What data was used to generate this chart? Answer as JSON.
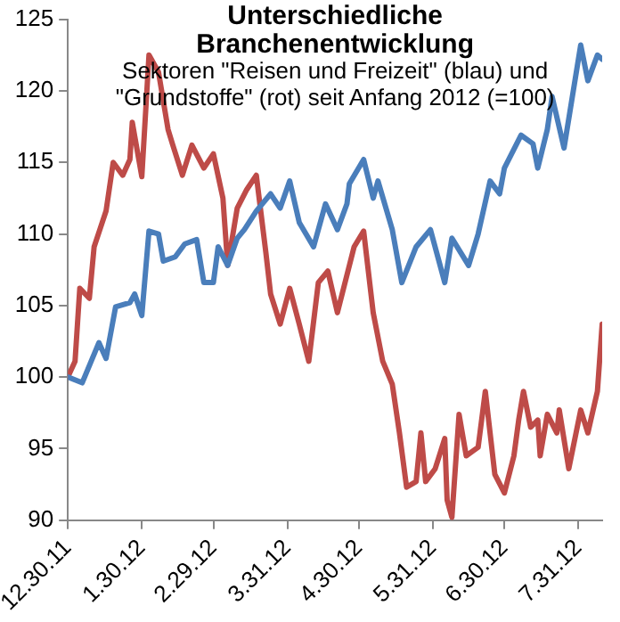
{
  "chart_data": {
    "type": "line",
    "title": "Unterschiedliche Branchenentwicklung",
    "subtitle": "Sektoren \"Reisen und Freizeit\" (blau) und \"Grundstoffe\" (rot) seit Anfang 2012 (=100)",
    "xlim": [
      "2011-12-30",
      "2012-08-10"
    ],
    "xticks": [
      {
        "value": "2011-12-30",
        "label": "12.30.11"
      },
      {
        "value": "2012-01-30",
        "label": "1.30.12"
      },
      {
        "value": "2012-02-29",
        "label": "2.29.12"
      },
      {
        "value": "2012-03-31",
        "label": "3.31.12"
      },
      {
        "value": "2012-04-30",
        "label": "4.30.12"
      },
      {
        "value": "2012-05-31",
        "label": "5.31.12"
      },
      {
        "value": "2012-06-30",
        "label": "6.30.12"
      },
      {
        "value": "2012-07-31",
        "label": "7.31.12"
      }
    ],
    "ylim": [
      90,
      125
    ],
    "yticks": [
      90,
      95,
      100,
      105,
      110,
      115,
      120,
      125
    ],
    "grid": false,
    "legend": false,
    "marker": "none",
    "line_style": "solid",
    "series": [
      {
        "color": "#4a7ebb",
        "x": [
          "2011-12-30",
          "2012-01-05",
          "2012-01-12",
          "2012-01-15",
          "2012-01-19",
          "2012-01-25",
          "2012-01-27",
          "2012-01-30",
          "2012-02-02",
          "2012-02-06",
          "2012-02-08",
          "2012-02-13",
          "2012-02-17",
          "2012-02-22",
          "2012-02-25",
          "2012-02-29",
          "2012-03-02",
          "2012-03-06",
          "2012-03-10",
          "2012-03-13",
          "2012-03-18",
          "2012-03-24",
          "2012-03-28",
          "2012-04-01",
          "2012-04-05",
          "2012-04-11",
          "2012-04-16",
          "2012-04-21",
          "2012-04-25",
          "2012-04-26",
          "2012-05-02",
          "2012-05-06",
          "2012-05-08",
          "2012-05-14",
          "2012-05-18",
          "2012-05-24",
          "2012-05-30",
          "2012-06-05",
          "2012-06-08",
          "2012-06-15",
          "2012-06-19",
          "2012-06-24",
          "2012-06-28",
          "2012-06-30",
          "2012-07-07",
          "2012-07-12",
          "2012-07-14",
          "2012-07-18",
          "2012-07-20",
          "2012-07-25",
          "2012-08-01",
          "2012-08-04",
          "2012-08-08",
          "2012-08-10"
        ],
        "values": [
          100,
          99.6,
          102.4,
          101.3,
          104.9,
          105.2,
          105.8,
          104.3,
          110.2,
          110,
          108.1,
          108.4,
          109.3,
          109.6,
          106.6,
          106.6,
          109.1,
          107.8,
          109.7,
          110.3,
          111.6,
          112.8,
          111.8,
          113.7,
          110.8,
          109.1,
          112.1,
          110.3,
          112.1,
          113.5,
          115.2,
          112.5,
          113.7,
          110.3,
          106.6,
          109.1,
          110.3,
          106.6,
          109.7,
          107.8,
          110,
          113.7,
          112.8,
          114.6,
          116.9,
          116.3,
          114.6,
          117.3,
          119.6,
          116,
          123.2,
          120.7,
          122.5,
          122.2
        ]
      },
      {
        "color": "#be4b48",
        "x": [
          "2011-12-30",
          "2012-01-02",
          "2012-01-04",
          "2012-01-08",
          "2012-01-10",
          "2012-01-15",
          "2012-01-18",
          "2012-01-22",
          "2012-01-25",
          "2012-01-26",
          "2012-01-30",
          "2012-02-02",
          "2012-02-06",
          "2012-02-10",
          "2012-02-12",
          "2012-02-16",
          "2012-02-20",
          "2012-02-25",
          "2012-02-29",
          "2012-03-04",
          "2012-03-06",
          "2012-03-10",
          "2012-03-14",
          "2012-03-18",
          "2012-03-22",
          "2012-03-24",
          "2012-03-28",
          "2012-04-01",
          "2012-04-05",
          "2012-04-09",
          "2012-04-13",
          "2012-04-17",
          "2012-04-21",
          "2012-04-28",
          "2012-05-02",
          "2012-05-06",
          "2012-05-10",
          "2012-05-14",
          "2012-05-17",
          "2012-05-20",
          "2012-05-24",
          "2012-05-26",
          "2012-05-28",
          "2012-06-01",
          "2012-06-05",
          "2012-06-06",
          "2012-06-08",
          "2012-06-11",
          "2012-06-14",
          "2012-06-19",
          "2012-06-22",
          "2012-06-26",
          "2012-06-30",
          "2012-07-04",
          "2012-07-06",
          "2012-07-08",
          "2012-07-11",
          "2012-07-14",
          "2012-07-15",
          "2012-07-18",
          "2012-07-22",
          "2012-07-23",
          "2012-07-27",
          "2012-08-01",
          "2012-08-04",
          "2012-08-08",
          "2012-08-10"
        ],
        "values": [
          100,
          101.1,
          106.2,
          105.5,
          109.1,
          111.6,
          115,
          114.1,
          115.2,
          117.8,
          114,
          122.5,
          121.3,
          117.3,
          116.2,
          114.1,
          116.2,
          114.6,
          115.6,
          112.5,
          107.8,
          111.8,
          113.1,
          114.1,
          108.7,
          105.8,
          103.7,
          106.2,
          103.7,
          101.1,
          106.6,
          107.4,
          104.5,
          109.1,
          110.2,
          104.5,
          101.1,
          99.5,
          96.1,
          92.3,
          92.7,
          96.1,
          92.7,
          93.6,
          95.7,
          91.4,
          90.2,
          97.4,
          94.5,
          95.1,
          99,
          93.2,
          91.9,
          94.5,
          97,
          99,
          96.5,
          97,
          94.5,
          97.4,
          96.1,
          97.7,
          93.6,
          97.7,
          96.1,
          99,
          103.7
        ]
      }
    ]
  }
}
